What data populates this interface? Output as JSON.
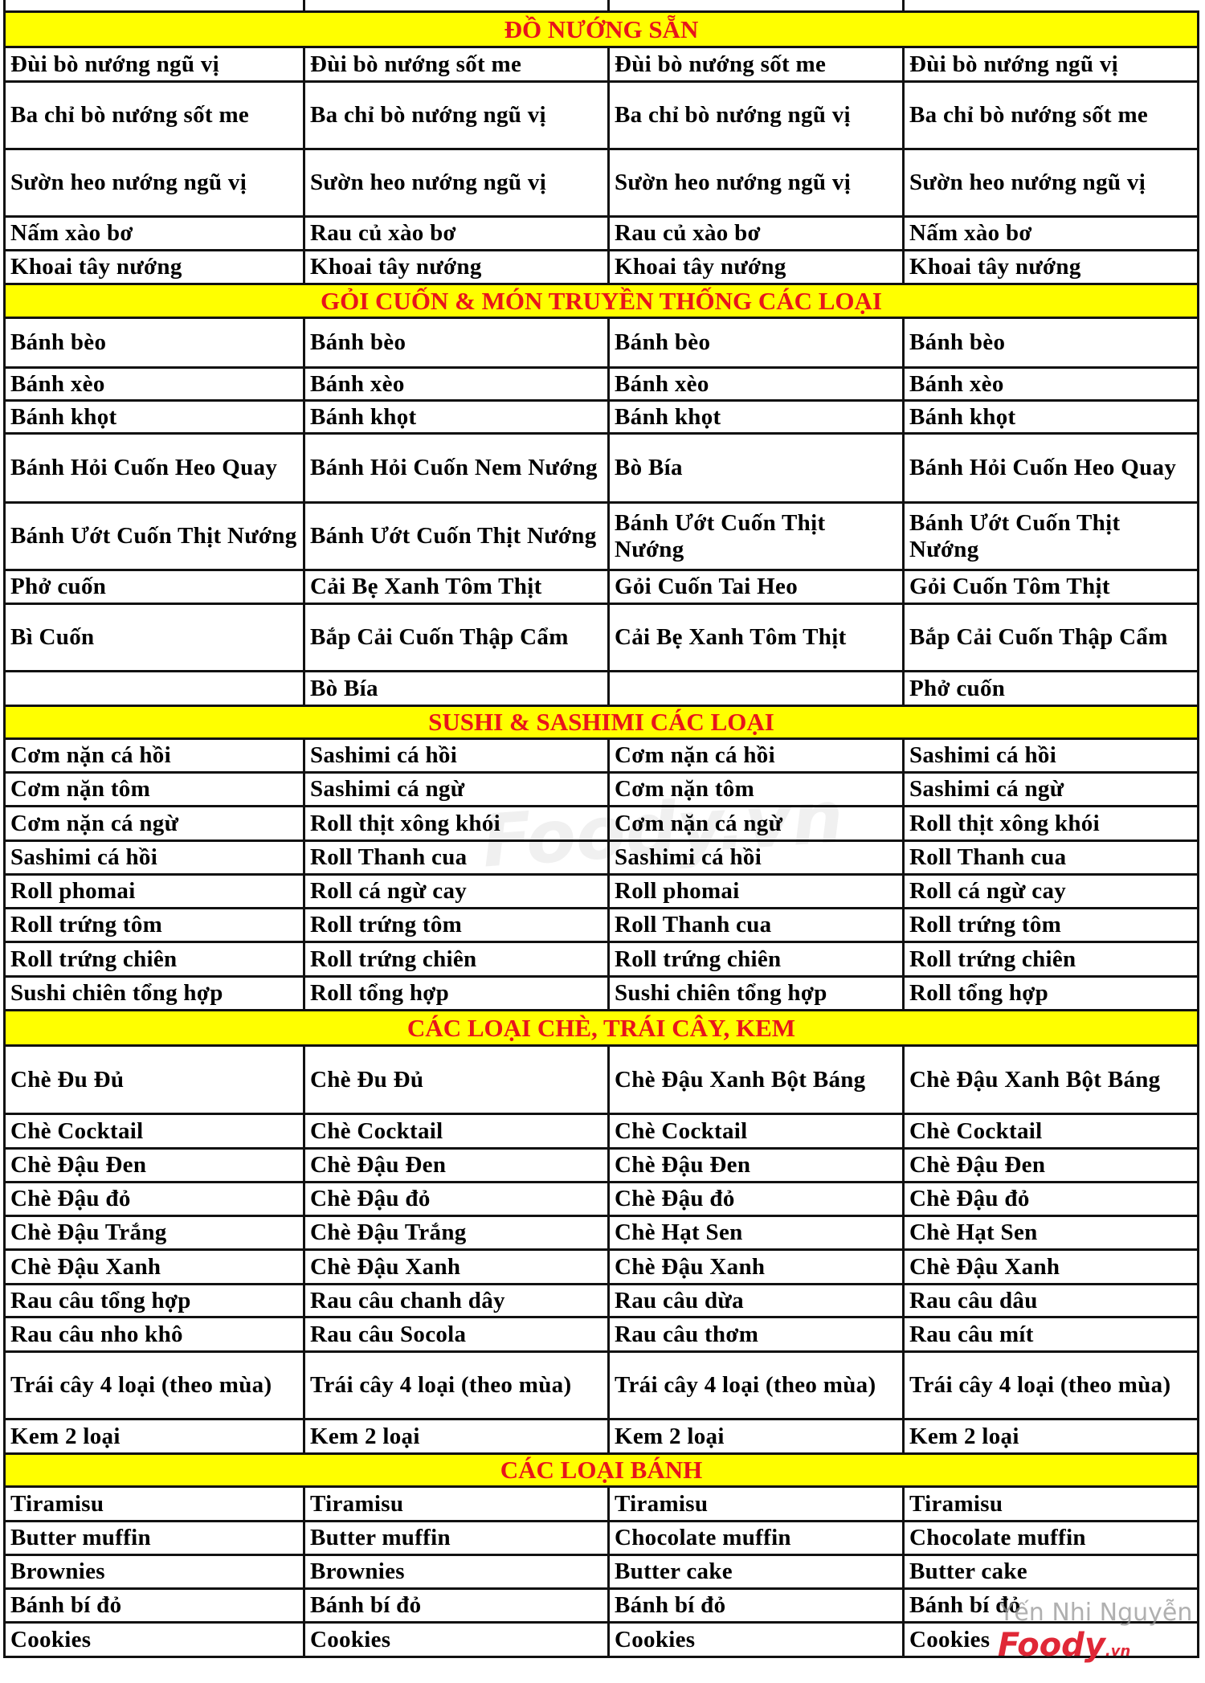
{
  "sections": [
    {
      "title": "ĐỒ NƯỚNG SẴN",
      "rows": [
        [
          "Đùi bò nướng ngũ vị",
          "Đùi bò nướng sốt me",
          "Đùi bò nướng sốt me",
          "Đùi bò nướng ngũ vị"
        ],
        [
          "Ba chỉ bò nướng sốt me",
          "Ba chỉ bò nướng ngũ vị",
          "Ba chỉ bò nướng ngũ vị",
          "Ba chỉ bò nướng sốt me"
        ],
        [
          "Sườn heo nướng ngũ vị",
          "Sườn heo nướng ngũ vị",
          "Sườn heo nướng ngũ vị",
          "Sườn heo nướng ngũ vị"
        ],
        [
          "Nấm xào bơ",
          "Rau củ xào bơ",
          "Rau củ xào bơ",
          "Nấm xào bơ"
        ],
        [
          "Khoai tây nướng",
          "Khoai tây  nướng",
          "Khoai tây nướng",
          "Khoai tây nướng"
        ]
      ]
    },
    {
      "title": "GỎI CUỐN & MÓN TRUYỀN THỐNG CÁC LOẠI",
      "rows": [
        [
          "Bánh bèo",
          "Bánh bèo",
          "Bánh bèo",
          "Bánh bèo"
        ],
        [
          "Bánh xèo",
          "Bánh xèo",
          "Bánh xèo",
          "Bánh xèo"
        ],
        [
          "Bánh khọt",
          "Bánh khọt",
          "Bánh khọt",
          "Bánh khọt"
        ],
        [
          "Bánh Hỏi Cuốn Heo Quay",
          "Bánh Hỏi Cuốn Nem Nướng",
          "Bò Bía",
          "Bánh Hỏi Cuốn Heo Quay"
        ],
        [
          "Bánh Ướt Cuốn Thịt Nướng",
          "Bánh Ướt Cuốn Thịt Nướng",
          "Bánh Ướt Cuốn Thịt Nướng",
          "Bánh Ướt Cuốn Thịt Nướng"
        ],
        [
          "Phở cuốn",
          "Cải Bẹ Xanh Tôm Thịt",
          "Gỏi Cuốn Tai Heo",
          "Gỏi Cuốn Tôm Thịt"
        ],
        [
          "Bì Cuốn",
          "Bắp Cải Cuốn Thập Cẩm",
          "Cải Bẹ Xanh Tôm Thịt",
          "Bắp Cải Cuốn Thập Cẩm"
        ],
        [
          "",
          "Bò Bía",
          "",
          "Phở cuốn"
        ]
      ]
    },
    {
      "title": "SUSHI & SASHIMI CÁC LOẠI",
      "rows": [
        [
          "Cơm nặn cá hồi",
          "Sashimi cá hồi",
          "Cơm nặn cá hồi",
          "Sashimi cá hồi"
        ],
        [
          "Cơm nặn tôm",
          "Sashimi cá ngừ",
          "Cơm nặn tôm",
          "Sashimi cá ngừ"
        ],
        [
          "Cơm nặn cá ngừ",
          "Roll thịt xông khói",
          "Cơm nặn cá ngừ",
          "Roll thịt xông khói"
        ],
        [
          "Sashimi cá hồi",
          "Roll Thanh cua",
          "Sashimi cá hồi",
          "Roll Thanh cua"
        ],
        [
          "Roll phomai",
          "Roll cá ngừ cay",
          "Roll phomai",
          "Roll cá ngừ cay"
        ],
        [
          "Roll trứng tôm",
          "Roll trứng tôm",
          "Roll Thanh cua",
          "Roll trứng tôm"
        ],
        [
          "Roll trứng chiên",
          "Roll trứng chiên",
          "Roll trứng chiên",
          "Roll trứng chiên"
        ],
        [
          "Sushi chiên tổng hợp",
          "Roll tổng hợp",
          "Sushi chiên tổng hợp",
          "Roll tổng hợp"
        ]
      ]
    },
    {
      "title": "CÁC LOẠI CHÈ, TRÁI CÂY, KEM",
      "rows": [
        [
          "Chè Đu Đủ",
          "Chè Đu Đủ",
          "Chè Đậu Xanh Bột Báng",
          "Chè Đậu Xanh Bột Báng"
        ],
        [
          "Chè Cocktail",
          "Chè Cocktail",
          "Chè Cocktail",
          "Chè Cocktail"
        ],
        [
          "Chè Đậu Đen",
          "Chè Đậu Đen",
          "Chè Đậu Đen",
          "Chè Đậu Đen"
        ],
        [
          "Chè Đậu đỏ",
          "Chè Đậu đỏ",
          "Chè Đậu đỏ",
          "Chè Đậu đỏ"
        ],
        [
          "Chè Đậu Trắng",
          "Chè Đậu Trắng",
          "Chè Hạt Sen",
          "Chè Hạt Sen"
        ],
        [
          "Chè Đậu Xanh",
          "Chè Đậu Xanh",
          "Chè Đậu Xanh",
          "Chè Đậu Xanh"
        ],
        [
          "Rau câu tổng hợp",
          "Rau câu chanh  dây",
          "Rau câu dừa",
          "Rau câu dâu"
        ],
        [
          "Rau câu nho khô",
          "Rau câu Socola",
          "Rau câu thơm",
          "Rau câu mít"
        ],
        [
          "Trái cây 4 loại (theo mùa)",
          "Trái cây 4 loại (theo mùa)",
          "Trái cây 4 loại (theo mùa)",
          "Trái cây 4 loại (theo mùa)"
        ],
        [
          "Kem 2 loại",
          "Kem 2 loại",
          "Kem 2 loại",
          "Kem 2 loại"
        ]
      ]
    },
    {
      "title": "CÁC LOẠI BÁNH",
      "rows": [
        [
          "Tiramisu",
          "Tiramisu",
          "Tiramisu",
          "Tiramisu"
        ],
        [
          "Butter muffin",
          "Butter muffin",
          "Chocolate muffin",
          "Chocolate muffin"
        ],
        [
          "Brownies",
          "Brownies",
          "Butter cake",
          "Butter cake"
        ],
        [
          "Bánh bí đỏ",
          "Bánh bí đỏ",
          "Bánh bí đỏ",
          "Bánh bí đỏ"
        ],
        [
          "Cookies",
          "Cookies",
          "Cookies",
          "Cookies"
        ]
      ]
    }
  ],
  "watermark": {
    "center": "Foody.vn",
    "author": "Yến Nhi Nguyễn",
    "logo": "Foody",
    "logo_suffix": ".vn"
  },
  "colors": {
    "header_bg": "#ffff00",
    "header_text": "#e8141b",
    "logo": "#e02837"
  }
}
